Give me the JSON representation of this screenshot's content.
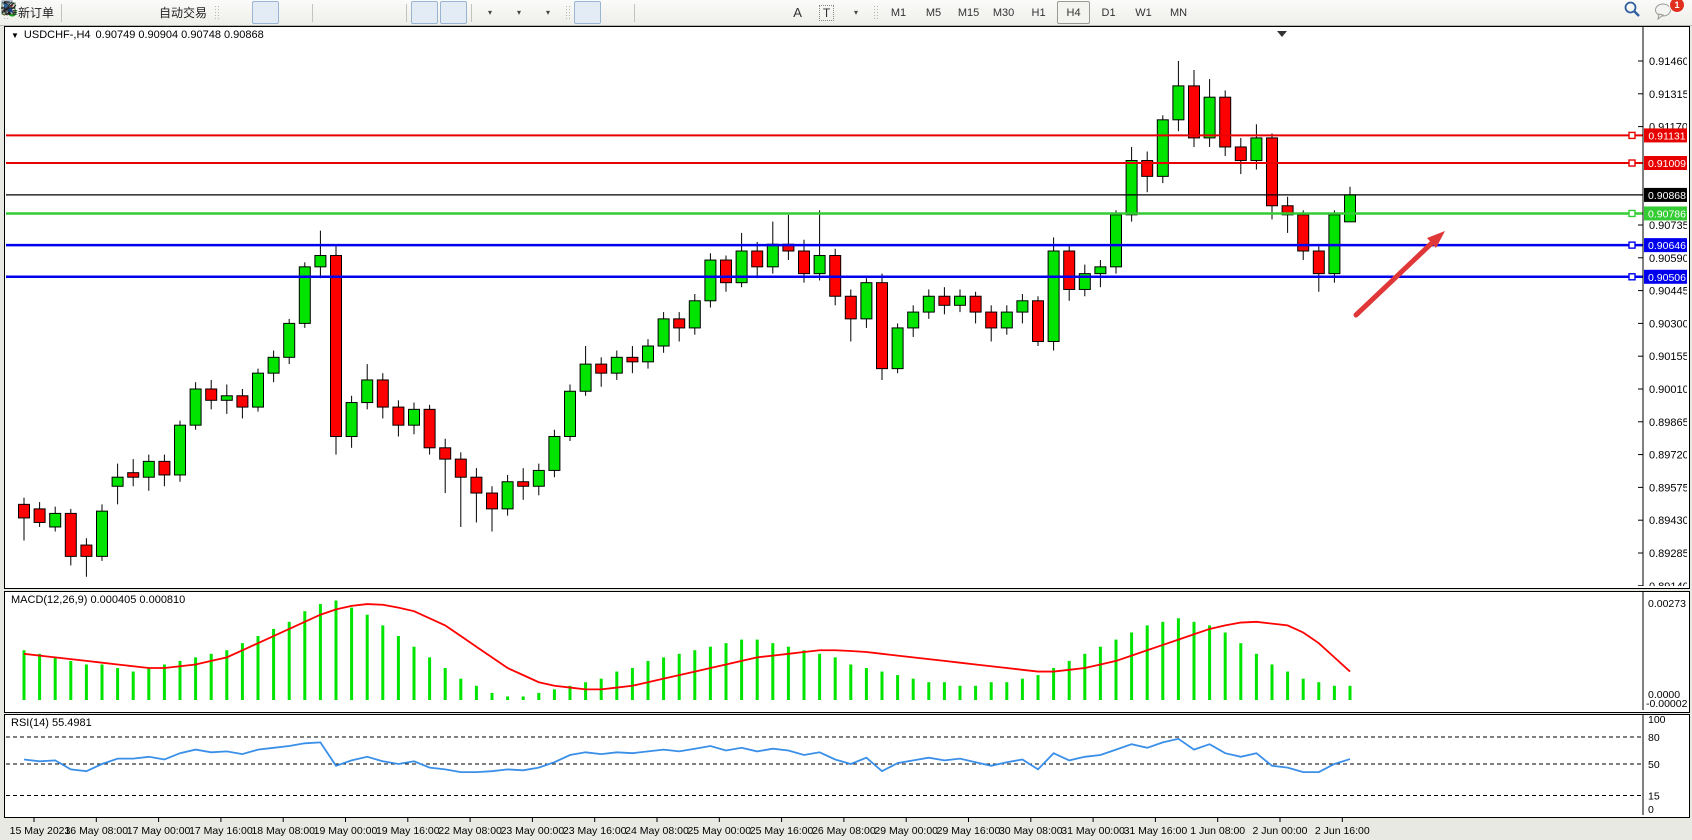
{
  "toolbar": {
    "new_order_label": "新订单",
    "auto_trading_label": "自动交易",
    "letter_tool": "A",
    "text_tool": "T",
    "timeframes": [
      "M1",
      "M5",
      "M15",
      "M30",
      "H1",
      "H4",
      "D1",
      "W1",
      "MN"
    ],
    "active_timeframe": "H4",
    "notification_count": "1"
  },
  "chart_header": {
    "symbol": "USDCHF-,H4",
    "ohlc": "0.90749 0.90904 0.90748 0.90868"
  },
  "price_axis": {
    "ticks": [
      "0.91460",
      "0.91315",
      "0.91170",
      "0.90735",
      "0.90590",
      "0.90445",
      "0.90300",
      "0.90155",
      "0.90010",
      "0.89865",
      "0.89720",
      "0.89575",
      "0.89430",
      "0.89285",
      "0.89140"
    ]
  },
  "time_axis": {
    "labels": [
      "15 May 2023",
      "16 May 08:00",
      "17 May 00:00",
      "17 May 16:00",
      "18 May 08:00",
      "19 May 00:00",
      "19 May 16:00",
      "22 May 08:00",
      "23 May 00:00",
      "23 May 16:00",
      "24 May 08:00",
      "25 May 00:00",
      "25 May 16:00",
      "26 May 08:00",
      "29 May 00:00",
      "29 May 16:00",
      "30 May 08:00",
      "31 May 00:00",
      "31 May 16:00",
      "1 Jun 08:00",
      "2 Jun 00:00",
      "2 Jun 16:00"
    ]
  },
  "price_lines": [
    {
      "price": 0.91131,
      "label": "0.91131",
      "color": "#E80000",
      "width": 2,
      "type": "resistance"
    },
    {
      "price": 0.91009,
      "label": "0.91009",
      "color": "#E80000",
      "width": 2,
      "type": "resistance"
    },
    {
      "price": 0.90868,
      "label": "0.90868",
      "color": "#000000",
      "width": 1.2,
      "type": "current-price"
    },
    {
      "price": 0.90786,
      "label": "0.90786",
      "color": "#33CC33",
      "width": 2.5,
      "type": "level"
    },
    {
      "price": 0.90646,
      "label": "0.90646",
      "color": "#0000EE",
      "width": 2.5,
      "type": "support"
    },
    {
      "price": 0.90506,
      "label": "0.90506",
      "color": "#0000EE",
      "width": 2.5,
      "type": "support"
    }
  ],
  "indicators": {
    "macd": {
      "label": "MACD(12,26,9) 0.000405 0.000810",
      "axis_top": "0.00273",
      "axis_zero": "0.0000",
      "axis_bottom": "-0.000024"
    },
    "rsi": {
      "label": "RSI(14) 55.4981",
      "axis_ticks": [
        "100",
        "80",
        "50",
        "15",
        "0"
      ]
    }
  },
  "annotations": [
    {
      "type": "arrow",
      "direction": "up-right",
      "color": "#E03838",
      "note": "bullish projection arrow right of last candle"
    }
  ],
  "chart_data": [
    {
      "type": "candlestick",
      "title": "USDCHF-,H4",
      "symbol": "USDCHF",
      "period": "H4",
      "ylim": [
        0.8914,
        0.9146
      ],
      "tick_step": 0.00145,
      "up_color": "#00E400",
      "down_color": "#FF0000",
      "candles": [
        [
          0.895,
          0.8953,
          0.8934,
          0.8944
        ],
        [
          0.8948,
          0.8951,
          0.894,
          0.8942
        ],
        [
          0.894,
          0.8949,
          0.8938,
          0.8946
        ],
        [
          0.8946,
          0.8948,
          0.8923,
          0.8927
        ],
        [
          0.8932,
          0.8935,
          0.8918,
          0.8927
        ],
        [
          0.8927,
          0.895,
          0.8925,
          0.8947
        ],
        [
          0.8958,
          0.8968,
          0.895,
          0.8962
        ],
        [
          0.8964,
          0.897,
          0.8958,
          0.8962
        ],
        [
          0.8962,
          0.8972,
          0.8956,
          0.8969
        ],
        [
          0.8969,
          0.8972,
          0.8958,
          0.8963
        ],
        [
          0.8963,
          0.8987,
          0.896,
          0.8985
        ],
        [
          0.8985,
          0.9004,
          0.8983,
          0.9001
        ],
        [
          0.9001,
          0.9005,
          0.8992,
          0.8996
        ],
        [
          0.8996,
          0.9003,
          0.899,
          0.8998
        ],
        [
          0.8998,
          0.9001,
          0.8988,
          0.8993
        ],
        [
          0.8993,
          0.901,
          0.8991,
          0.9008
        ],
        [
          0.9008,
          0.9018,
          0.9004,
          0.9015
        ],
        [
          0.9015,
          0.9032,
          0.9012,
          0.903
        ],
        [
          0.903,
          0.9057,
          0.9028,
          0.9055
        ],
        [
          0.9055,
          0.9071,
          0.905,
          0.906
        ],
        [
          0.906,
          0.9065,
          0.8972,
          0.898
        ],
        [
          0.898,
          0.8998,
          0.8975,
          0.8995
        ],
        [
          0.8995,
          0.9012,
          0.8992,
          0.9005
        ],
        [
          0.9005,
          0.9008,
          0.8988,
          0.8993
        ],
        [
          0.8993,
          0.8996,
          0.898,
          0.8985
        ],
        [
          0.8985,
          0.8995,
          0.8981,
          0.8992
        ],
        [
          0.8992,
          0.8994,
          0.8972,
          0.8975
        ],
        [
          0.8975,
          0.8979,
          0.8955,
          0.897
        ],
        [
          0.897,
          0.8973,
          0.894,
          0.8962
        ],
        [
          0.8962,
          0.8966,
          0.8942,
          0.8955
        ],
        [
          0.8955,
          0.8958,
          0.8938,
          0.8948
        ],
        [
          0.8948,
          0.8963,
          0.8945,
          0.896
        ],
        [
          0.896,
          0.8966,
          0.8952,
          0.8958
        ],
        [
          0.8958,
          0.8968,
          0.8954,
          0.8965
        ],
        [
          0.8965,
          0.8983,
          0.8962,
          0.898
        ],
        [
          0.898,
          0.9003,
          0.8978,
          0.9
        ],
        [
          0.9,
          0.902,
          0.8998,
          0.9012
        ],
        [
          0.9012,
          0.9015,
          0.9002,
          0.9008
        ],
        [
          0.9008,
          0.9018,
          0.9005,
          0.9015
        ],
        [
          0.9015,
          0.902,
          0.9008,
          0.9013
        ],
        [
          0.9013,
          0.9023,
          0.901,
          0.902
        ],
        [
          0.902,
          0.9035,
          0.9017,
          0.9032
        ],
        [
          0.9032,
          0.9035,
          0.9022,
          0.9028
        ],
        [
          0.9028,
          0.9043,
          0.9025,
          0.904
        ],
        [
          0.904,
          0.9061,
          0.9037,
          0.9058
        ],
        [
          0.9058,
          0.906,
          0.9044,
          0.9048
        ],
        [
          0.9048,
          0.907,
          0.9046,
          0.9062
        ],
        [
          0.9062,
          0.9066,
          0.905,
          0.9055
        ],
        [
          0.9055,
          0.9075,
          0.9052,
          0.9065
        ],
        [
          0.9065,
          0.9078,
          0.9058,
          0.9062
        ],
        [
          0.9062,
          0.9067,
          0.9048,
          0.9052
        ],
        [
          0.9052,
          0.908,
          0.9049,
          0.906
        ],
        [
          0.906,
          0.9063,
          0.9038,
          0.9042
        ],
        [
          0.9042,
          0.9045,
          0.9022,
          0.9032
        ],
        [
          0.9032,
          0.905,
          0.9028,
          0.9048
        ],
        [
          0.9048,
          0.9052,
          0.9005,
          0.901
        ],
        [
          0.901,
          0.903,
          0.9008,
          0.9028
        ],
        [
          0.9028,
          0.9038,
          0.9024,
          0.9035
        ],
        [
          0.9035,
          0.9045,
          0.9032,
          0.9042
        ],
        [
          0.9042,
          0.9046,
          0.9034,
          0.9038
        ],
        [
          0.9038,
          0.9045,
          0.9035,
          0.9042
        ],
        [
          0.9042,
          0.9044,
          0.903,
          0.9035
        ],
        [
          0.9035,
          0.9038,
          0.9022,
          0.9028
        ],
        [
          0.9028,
          0.9038,
          0.9025,
          0.9035
        ],
        [
          0.9035,
          0.9043,
          0.903,
          0.904
        ],
        [
          0.904,
          0.9042,
          0.902,
          0.9022
        ],
        [
          0.9022,
          0.9068,
          0.9018,
          0.9062
        ],
        [
          0.9062,
          0.9065,
          0.904,
          0.9045
        ],
        [
          0.9045,
          0.9056,
          0.9042,
          0.9052
        ],
        [
          0.9052,
          0.9058,
          0.9046,
          0.9055
        ],
        [
          0.9055,
          0.908,
          0.9052,
          0.9078
        ],
        [
          0.9078,
          0.9108,
          0.9075,
          0.9102
        ],
        [
          0.9102,
          0.9106,
          0.9088,
          0.9095
        ],
        [
          0.9095,
          0.9122,
          0.9092,
          0.912
        ],
        [
          0.912,
          0.9146,
          0.9115,
          0.9135
        ],
        [
          0.9135,
          0.9142,
          0.9108,
          0.9112
        ],
        [
          0.9112,
          0.9138,
          0.9108,
          0.913
        ],
        [
          0.913,
          0.9133,
          0.9104,
          0.9108
        ],
        [
          0.9108,
          0.9112,
          0.9096,
          0.9102
        ],
        [
          0.9102,
          0.9118,
          0.9098,
          0.9112
        ],
        [
          0.9112,
          0.9114,
          0.9076,
          0.9082
        ],
        [
          0.9082,
          0.9086,
          0.907,
          0.9078
        ],
        [
          0.9078,
          0.908,
          0.9058,
          0.9062
        ],
        [
          0.9062,
          0.9064,
          0.9044,
          0.9052
        ],
        [
          0.9052,
          0.908,
          0.9048,
          0.9078
        ],
        [
          0.90749,
          0.90904,
          0.90748,
          0.90868
        ]
      ]
    },
    {
      "type": "bar",
      "name": "MACD",
      "params": "12,26,9",
      "values_label": "0.000405 0.000810",
      "ylim": [
        -2.4e-05,
        0.00273
      ],
      "histogram_color": "#00E400",
      "signal_color": "#FF0000",
      "histogram": [
        0.0014,
        0.0013,
        0.0012,
        0.0011,
        0.001,
        0.001,
        0.0009,
        0.0008,
        0.0009,
        0.001,
        0.0011,
        0.0012,
        0.0013,
        0.0014,
        0.0016,
        0.0018,
        0.002,
        0.0022,
        0.0025,
        0.0027,
        0.0028,
        0.0026,
        0.0024,
        0.0021,
        0.0018,
        0.0015,
        0.0012,
        0.0009,
        0.0006,
        0.0004,
        0.0002,
        0.0001,
        0.0001,
        0.0002,
        0.0003,
        0.0004,
        0.0005,
        0.0006,
        0.0008,
        0.0009,
        0.0011,
        0.0012,
        0.0013,
        0.0014,
        0.0015,
        0.0016,
        0.0017,
        0.0017,
        0.0016,
        0.0015,
        0.0014,
        0.0013,
        0.0012,
        0.001,
        0.0009,
        0.0008,
        0.0007,
        0.0006,
        0.0005,
        0.0005,
        0.0004,
        0.0004,
        0.0005,
        0.0005,
        0.0006,
        0.0007,
        0.0009,
        0.0011,
        0.0013,
        0.0015,
        0.0017,
        0.0019,
        0.0021,
        0.0022,
        0.0023,
        0.0022,
        0.0021,
        0.0019,
        0.0016,
        0.0013,
        0.001,
        0.0008,
        0.0006,
        0.0005,
        0.0004,
        0.0004
      ],
      "signal": [
        0.0013,
        0.00125,
        0.0012,
        0.00115,
        0.0011,
        0.00105,
        0.001,
        0.00095,
        0.0009,
        0.0009,
        0.00095,
        0.001,
        0.0011,
        0.0012,
        0.0014,
        0.0016,
        0.0018,
        0.002,
        0.0022,
        0.0024,
        0.00255,
        0.00265,
        0.0027,
        0.00268,
        0.0026,
        0.0025,
        0.0023,
        0.0021,
        0.0018,
        0.0015,
        0.0012,
        0.0009,
        0.0007,
        0.0005,
        0.0004,
        0.00035,
        0.0003,
        0.0003,
        0.00035,
        0.0004,
        0.0005,
        0.0006,
        0.0007,
        0.0008,
        0.0009,
        0.001,
        0.0011,
        0.0012,
        0.00125,
        0.0013,
        0.00135,
        0.0014,
        0.0014,
        0.00138,
        0.00135,
        0.0013,
        0.00125,
        0.0012,
        0.00115,
        0.0011,
        0.00105,
        0.001,
        0.00095,
        0.0009,
        0.00085,
        0.0008,
        0.0008,
        0.00085,
        0.0009,
        0.001,
        0.0011,
        0.00125,
        0.0014,
        0.00155,
        0.0017,
        0.00185,
        0.002,
        0.0021,
        0.00218,
        0.0022,
        0.00215,
        0.0021,
        0.0019,
        0.0016,
        0.0012,
        0.0008
      ]
    },
    {
      "type": "line",
      "name": "RSI",
      "period": 14,
      "value": 55.4981,
      "ylim": [
        0,
        100
      ],
      "levels": [
        80,
        50,
        15
      ],
      "line_color": "#3A8FE8",
      "series": [
        55,
        53,
        54,
        44,
        42,
        50,
        56,
        56,
        58,
        55,
        62,
        66,
        63,
        64,
        61,
        66,
        68,
        70,
        73,
        74,
        48,
        54,
        58,
        53,
        50,
        53,
        46,
        44,
        41,
        41,
        42,
        44,
        43,
        46,
        52,
        60,
        63,
        61,
        63,
        62,
        64,
        66,
        64,
        67,
        70,
        65,
        68,
        64,
        67,
        65,
        60,
        63,
        55,
        50,
        57,
        42,
        51,
        54,
        57,
        54,
        56,
        52,
        48,
        52,
        55,
        44,
        62,
        54,
        58,
        60,
        66,
        72,
        68,
        74,
        78,
        66,
        72,
        62,
        58,
        62,
        48,
        46,
        41,
        41,
        50,
        55.4981
      ]
    }
  ]
}
